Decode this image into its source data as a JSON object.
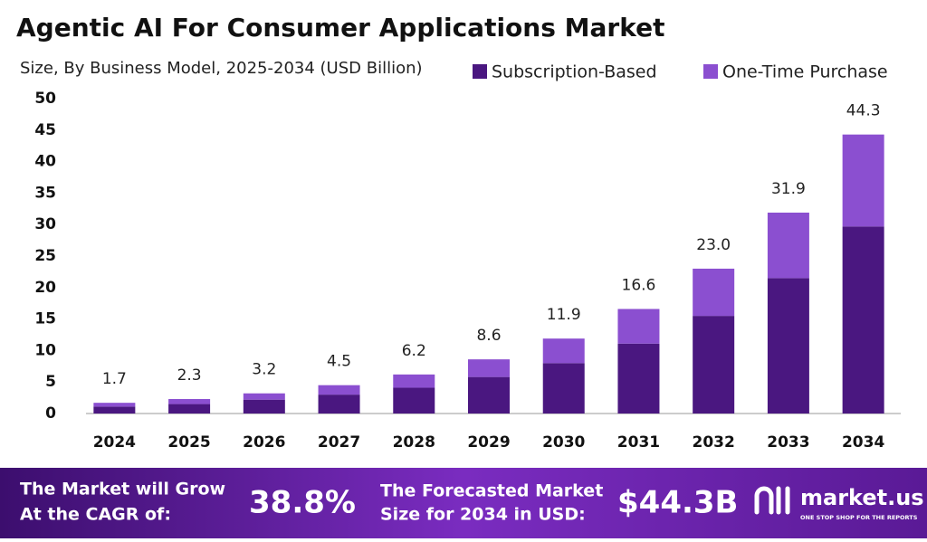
{
  "chart_data": {
    "type": "stacked-bar",
    "title": "Agentic AI For Consumer Applications Market",
    "subtitle": "Size, By Business Model, 2025-2034 (USD Billion)",
    "categories": [
      "2024",
      "2025",
      "2026",
      "2027",
      "2028",
      "2029",
      "2030",
      "2031",
      "2032",
      "2033",
      "2034"
    ],
    "series": [
      {
        "name": "Subscription-Based",
        "color": "#4a1780",
        "values": [
          1.1,
          1.5,
          2.2,
          3.0,
          4.1,
          5.8,
          8.0,
          11.1,
          15.5,
          21.5,
          29.7
        ]
      },
      {
        "name": "One-Time Purchase",
        "color": "#8b4fd0",
        "values": [
          0.6,
          0.8,
          1.0,
          1.5,
          2.1,
          2.8,
          3.9,
          5.5,
          7.5,
          10.4,
          14.6
        ]
      }
    ],
    "totals": [
      1.7,
      2.3,
      3.2,
      4.5,
      6.2,
      8.6,
      11.9,
      16.6,
      23.0,
      31.9,
      44.3
    ],
    "total_labels": [
      "1.7",
      "2.3",
      "3.2",
      "4.5",
      "6.2",
      "8.6",
      "11.9",
      "16.6",
      "23.0",
      "31.9",
      "44.3"
    ],
    "ylim": [
      0,
      50
    ],
    "yticks": [
      0,
      5,
      10,
      15,
      20,
      25,
      30,
      35,
      40,
      45,
      50
    ],
    "grid": false
  },
  "footer": {
    "cagr_line1": "The Market will Grow",
    "cagr_line2": "At the CAGR of:",
    "cagr_value": "38.8%",
    "forecast_line1": "The Forecasted Market",
    "forecast_line2": "Size for 2034 in USD:",
    "forecast_value": "$44.3B",
    "brand": "market.us",
    "tagline": "ONE STOP SHOP FOR THE REPORTS"
  }
}
